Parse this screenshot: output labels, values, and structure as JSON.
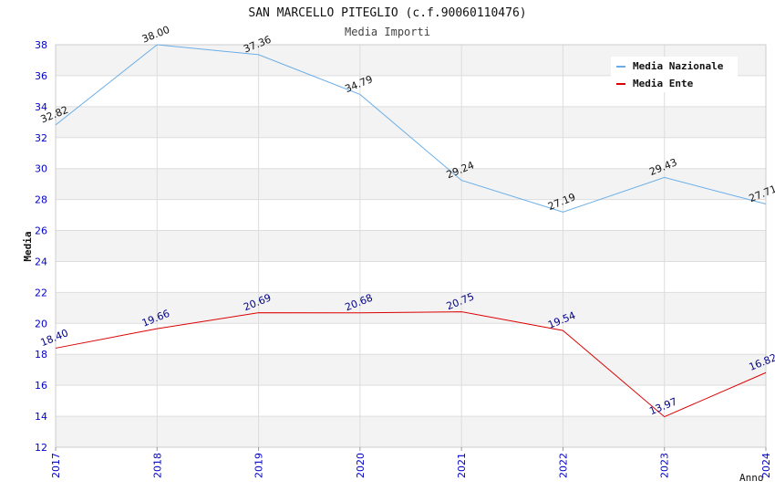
{
  "chart_data": {
    "type": "line",
    "title": "SAN MARCELLO PITEGLIO (c.f.90060110476)",
    "subtitle": "Media Importi",
    "xlabel": "Anno",
    "ylabel": "Media",
    "categories": [
      "2017",
      "2018",
      "2019",
      "2020",
      "2021",
      "2022",
      "2023",
      "2024"
    ],
    "ylim": [
      12,
      38
    ],
    "yticks": [
      12,
      14,
      16,
      18,
      20,
      22,
      24,
      26,
      28,
      30,
      32,
      34,
      36,
      38
    ],
    "yticks_labels": [
      "12",
      "14",
      "16",
      "18",
      "20",
      "22",
      "24",
      "26",
      "28",
      "30",
      "32",
      "34",
      "36",
      "38"
    ],
    "legend_position": "top-right",
    "series": [
      {
        "name": "Media Nazionale",
        "color": "#6aaee8",
        "label_color": "#111111",
        "values": [
          32.82,
          38.0,
          37.36,
          34.79,
          29.24,
          27.19,
          29.43,
          27.71
        ],
        "labels": [
          "32.82",
          "38.00",
          "37.36",
          "34.79",
          "29.24",
          "27.19",
          "29.43",
          "27.71"
        ]
      },
      {
        "name": "Media Ente",
        "color": "#dd0000",
        "label_color": "#000088",
        "values": [
          18.4,
          19.66,
          20.69,
          20.68,
          20.75,
          19.54,
          13.97,
          16.82
        ],
        "labels": [
          "18.40",
          "19.66",
          "20.69",
          "20.68",
          "20.75",
          "19.54",
          "13.97",
          "16.82"
        ]
      }
    ]
  }
}
